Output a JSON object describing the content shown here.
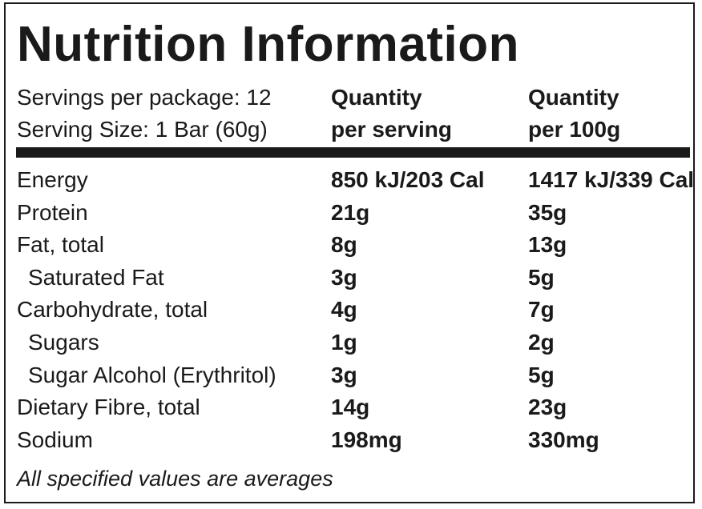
{
  "title": "Nutrition Information",
  "servings_per_package": "Servings per package: 12",
  "serving_size": "Serving Size: 1 Bar (60g)",
  "columns": [
    {
      "line1": "Quantity",
      "line2": "per serving"
    },
    {
      "line1": "Quantity",
      "line2": "per 100g"
    }
  ],
  "rows": [
    {
      "nutrient": "Energy",
      "per_serving": "850 kJ/203 Cal",
      "per_100g": "1417 kJ/339 Cal"
    },
    {
      "nutrient": "Protein",
      "per_serving": "21g",
      "per_100g": "35g"
    },
    {
      "nutrient": "Fat, total",
      "per_serving": "8g",
      "per_100g": "13g"
    },
    {
      "nutrient": "Saturated Fat",
      "per_serving": "3g",
      "per_100g": "5g"
    },
    {
      "nutrient": "Carbohydrate, total",
      "per_serving": "4g",
      "per_100g": "7g"
    },
    {
      "nutrient": "Sugars",
      "per_serving": "1g",
      "per_100g": "2g"
    },
    {
      "nutrient": "Sugar Alcohol (Erythritol)",
      "per_serving": "3g",
      "per_100g": "5g"
    },
    {
      "nutrient": "Dietary Fibre, total",
      "per_serving": "14g",
      "per_100g": "23g"
    },
    {
      "nutrient": "Sodium",
      "per_serving": "198mg",
      "per_100g": "330mg"
    }
  ],
  "footnote": "All specified values are averages"
}
